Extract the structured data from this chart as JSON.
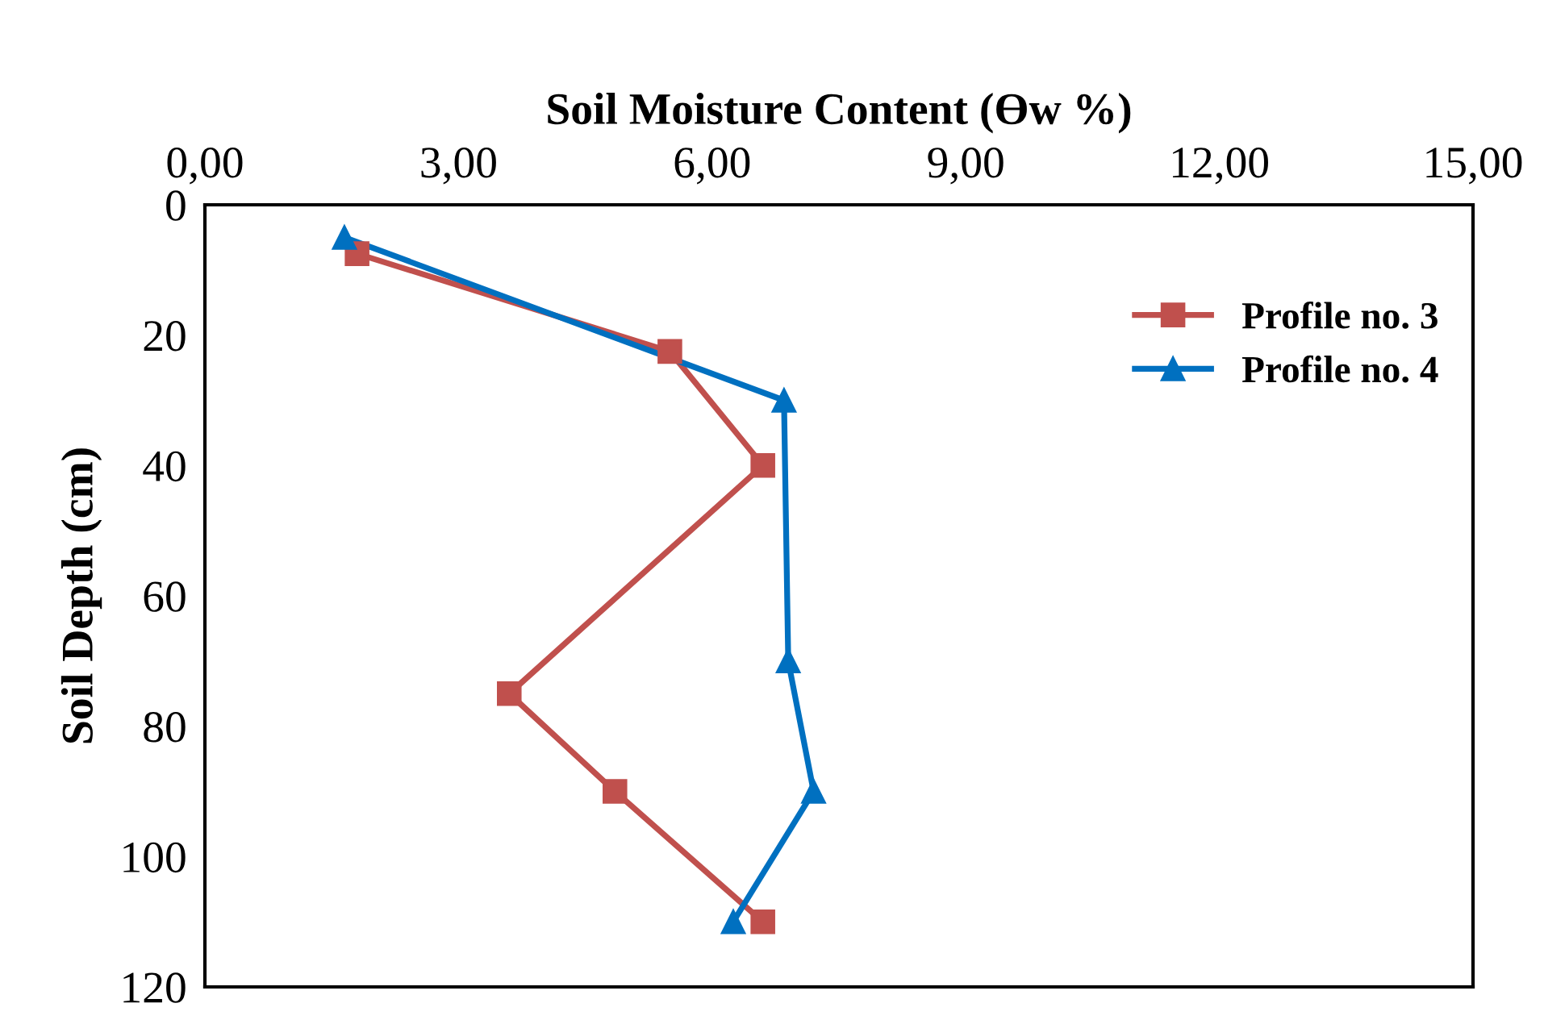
{
  "chart_data": {
    "type": "line",
    "xlabel": "Soil Moisture Content (Ɵw %)",
    "ylabel": "Soil Depth (cm)",
    "xlim": [
      0,
      15
    ],
    "xticks": [
      {
        "value": 0,
        "label": "0,00"
      },
      {
        "value": 3,
        "label": "3,00"
      },
      {
        "value": 6,
        "label": "6,00"
      },
      {
        "value": 9,
        "label": "9,00"
      },
      {
        "value": 12,
        "label": "12,00"
      },
      {
        "value": 15,
        "label": "15,00"
      }
    ],
    "ylim": [
      120,
      0
    ],
    "yticks": [
      0,
      20,
      40,
      60,
      80,
      100,
      120
    ],
    "grid": false,
    "legend": "top right",
    "line_style": "solid",
    "series": [
      {
        "name": "Profile no. 3",
        "color": "#c0504d",
        "marker": "square",
        "x": [
          1.8,
          5.5,
          6.6,
          3.6,
          4.85,
          6.6
        ],
        "values": [
          7.5,
          22.5,
          40,
          75,
          90,
          110
        ]
      },
      {
        "name": "Profile no. 4",
        "color": "#0070c0",
        "marker": "triangle",
        "x": [
          1.65,
          6.85,
          6.9,
          7.2,
          6.25
        ],
        "values": [
          5,
          30,
          70,
          90,
          110
        ]
      }
    ]
  }
}
